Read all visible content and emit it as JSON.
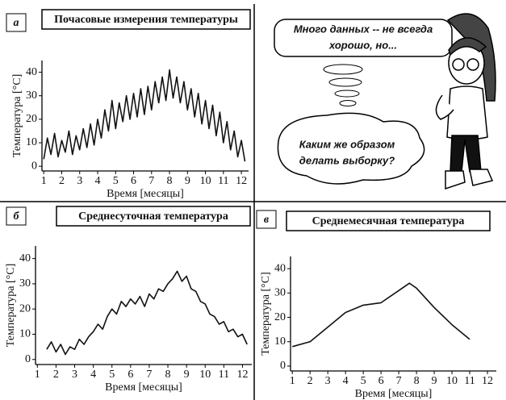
{
  "chart_data": [
    {
      "type": "line",
      "panel": "а",
      "title": "Почасовые измерения температуры",
      "x_label": "Время [месяцы]",
      "y_label": "Температура [°C]",
      "x": [
        1,
        1.2,
        1.4,
        1.6,
        1.8,
        2,
        2.2,
        2.4,
        2.6,
        2.8,
        3,
        3.2,
        3.4,
        3.6,
        3.8,
        4,
        4.2,
        4.4,
        4.6,
        4.8,
        5,
        5.2,
        5.4,
        5.6,
        5.8,
        6,
        6.2,
        6.4,
        6.6,
        6.8,
        7,
        7.2,
        7.4,
        7.6,
        7.8,
        8,
        8.2,
        8.4,
        8.6,
        8.8,
        9,
        9.2,
        9.4,
        9.6,
        9.8,
        10,
        10.2,
        10.4,
        10.6,
        10.8,
        11,
        11.2,
        11.4,
        11.6,
        11.8,
        12,
        12.2
      ],
      "series": [
        {
          "color": "#111111",
          "values": [
            3,
            12,
            5,
            14,
            4,
            11,
            6,
            15,
            5,
            13,
            7,
            16,
            8,
            18,
            9,
            20,
            12,
            24,
            15,
            28,
            16,
            27,
            19,
            30,
            20,
            31,
            21,
            33,
            22,
            34,
            24,
            36,
            27,
            38,
            28,
            41,
            29,
            38,
            27,
            36,
            24,
            33,
            21,
            31,
            18,
            28,
            16,
            26,
            13,
            23,
            10,
            19,
            7,
            15,
            4,
            11,
            2
          ]
        }
      ],
      "xlim": [
        0.9,
        12.4
      ],
      "xticks": [
        1,
        2,
        3,
        4,
        5,
        6,
        7,
        8,
        9,
        10,
        11,
        12
      ],
      "ylim": [
        -2,
        45
      ],
      "yticks": [
        0,
        10,
        20,
        30,
        40
      ]
    },
    {
      "type": "line",
      "panel": "б",
      "title": "Среднесуточная температура",
      "x_label": "Время [месяцы]",
      "y_label": "Температура [°C]",
      "x": [
        1.5,
        1.75,
        2,
        2.25,
        2.5,
        2.75,
        3,
        3.25,
        3.5,
        3.75,
        4,
        4.25,
        4.5,
        4.75,
        5,
        5.25,
        5.5,
        5.75,
        6,
        6.25,
        6.5,
        6.75,
        7,
        7.25,
        7.5,
        7.75,
        8,
        8.25,
        8.5,
        8.75,
        9,
        9.25,
        9.5,
        9.75,
        10,
        10.25,
        10.5,
        10.75,
        11,
        11.25,
        11.5,
        11.75,
        12,
        12.25
      ],
      "series": [
        {
          "color": "#111111",
          "values": [
            4,
            7,
            3,
            6,
            2,
            5,
            4,
            8,
            6,
            9,
            11,
            14,
            12,
            17,
            20,
            18,
            23,
            21,
            24,
            22,
            25,
            21,
            26,
            24,
            28,
            27,
            30,
            32,
            35,
            31,
            33,
            28,
            27,
            23,
            22,
            18,
            17,
            14,
            15,
            11,
            12,
            9,
            10,
            6
          ]
        }
      ],
      "xlim": [
        0.9,
        12.5
      ],
      "xticks": [
        1,
        2,
        3,
        4,
        5,
        6,
        7,
        8,
        9,
        10,
        11,
        12
      ],
      "ylim": [
        -2,
        45
      ],
      "yticks": [
        0,
        10,
        20,
        30,
        40
      ]
    },
    {
      "type": "line",
      "panel": "в",
      "title": "Среднемесячная температура",
      "x_label": "Время [месяцы]",
      "y_label": "Температура [°C]",
      "x": [
        1,
        2,
        3,
        4,
        5,
        6,
        7,
        7.6,
        8,
        9,
        10,
        11
      ],
      "series": [
        {
          "color": "#111111",
          "values": [
            8,
            10,
            16,
            22,
            25,
            26,
            31,
            34,
            32,
            24,
            17,
            11
          ]
        }
      ],
      "xlim": [
        0.9,
        12.5
      ],
      "xticks": [
        1,
        2,
        3,
        4,
        5,
        6,
        7,
        8,
        9,
        10,
        11,
        12
      ],
      "ylim": [
        -2,
        45
      ],
      "yticks": [
        0,
        10,
        20,
        30,
        40
      ]
    }
  ],
  "bubbles": [
    "Много данных -- не всегда",
    "хорошо, но...",
    "Каким же образом",
    "делать выборку?"
  ]
}
